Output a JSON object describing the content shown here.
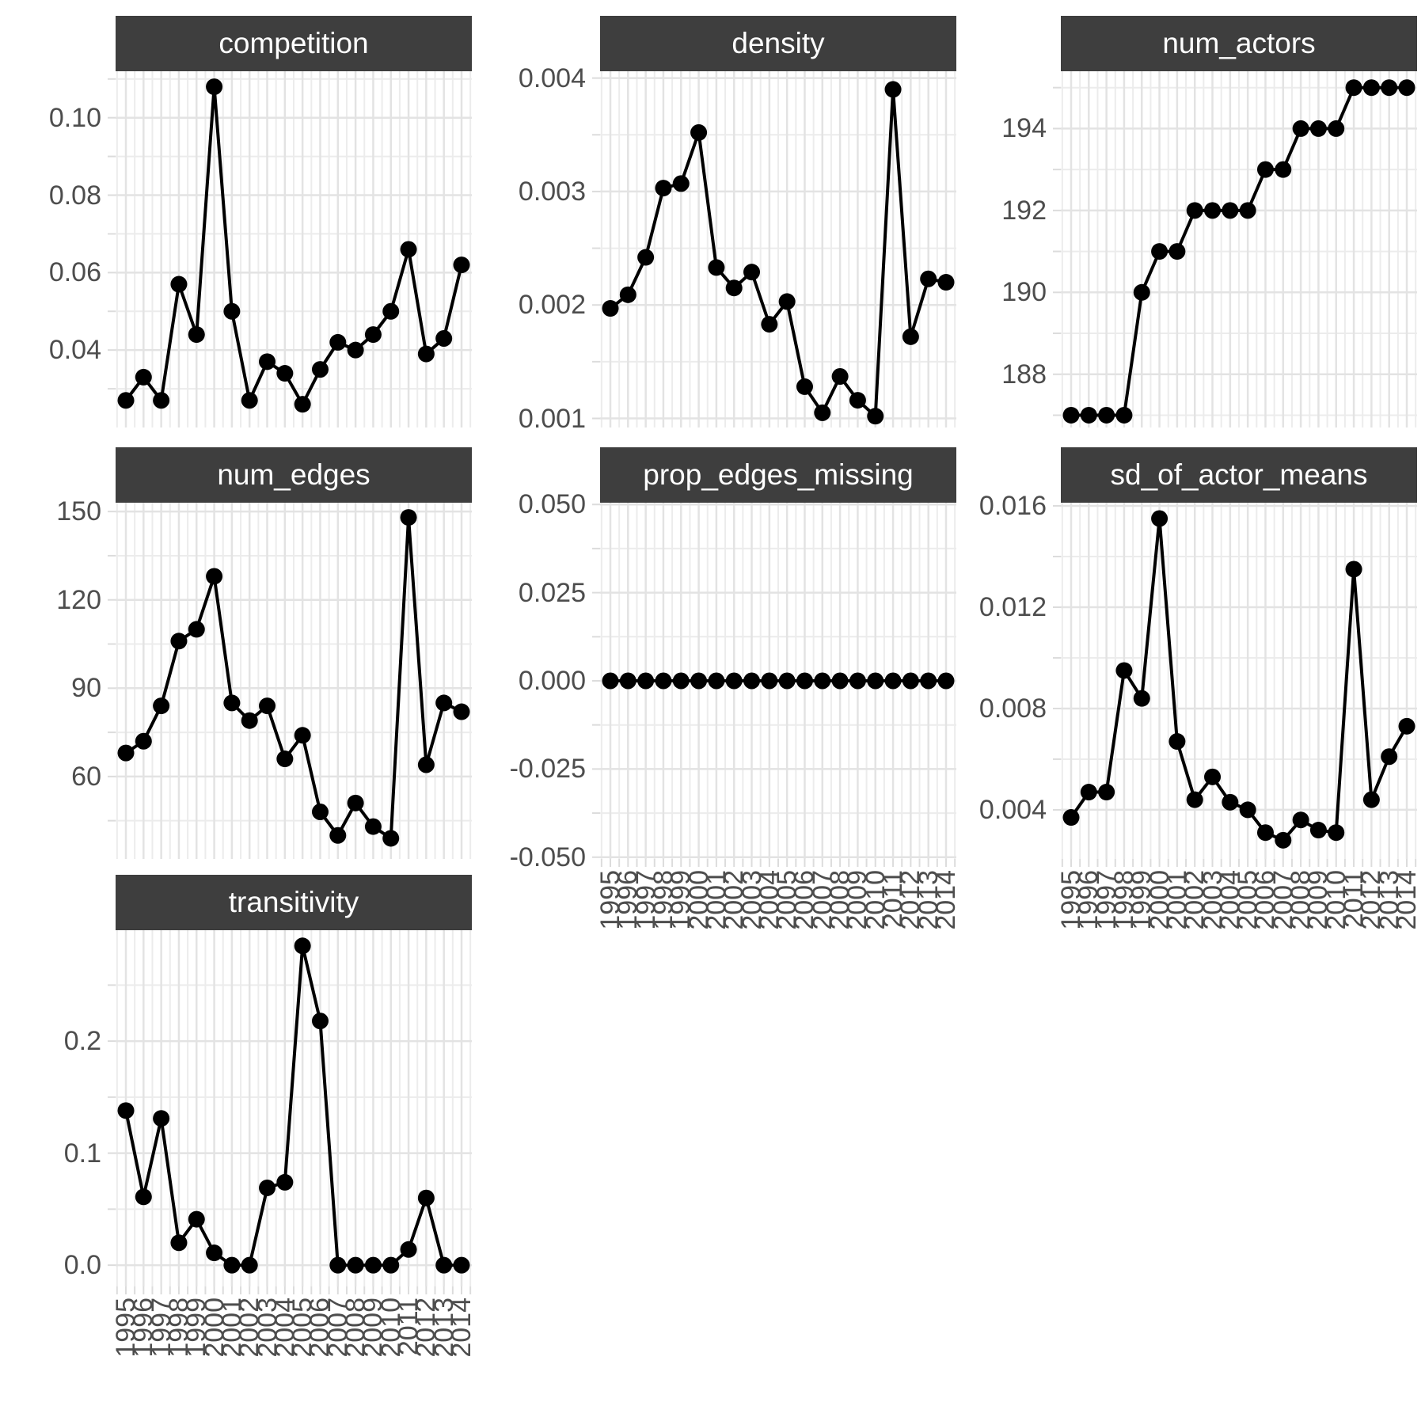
{
  "figure": {
    "background": "#ffffff"
  },
  "style": {
    "strip_bg": "#3E3E3E",
    "strip_text": "#FFFFFF",
    "axis_text_color": "#4D4D4D",
    "grid_major_color": "#E3E3E3",
    "grid_minor_color": "#ECECEC",
    "tick_color": "#DCDCDC",
    "line_color": "#000000",
    "point_color": "#000000"
  },
  "x_axis": {
    "years": [
      1995,
      1996,
      1997,
      1998,
      1999,
      2000,
      2001,
      2002,
      2003,
      2004,
      2005,
      2006,
      2007,
      2008,
      2009,
      2010,
      2011,
      2012,
      2013,
      2014
    ],
    "tick_labels": [
      "1995",
      "1996",
      "1997",
      "1998",
      "1999",
      "2000",
      "2001",
      "2002",
      "2003",
      "2004",
      "2005",
      "2006",
      "2007",
      "2008",
      "2009",
      "2010",
      "2011",
      "2012",
      "2013",
      "2014"
    ]
  },
  "chart_data": [
    {
      "type": "line",
      "title": "competition",
      "row": 0,
      "col": 0,
      "show_x_labels": false,
      "values": [
        0.027,
        0.033,
        0.027,
        0.057,
        0.044,
        0.108,
        0.05,
        0.027,
        0.037,
        0.034,
        0.026,
        0.035,
        0.042,
        0.04,
        0.044,
        0.05,
        0.066,
        0.039,
        0.043,
        0.062
      ],
      "y_ticks": {
        "labels": [
          "0.10",
          "0.08",
          "0.06",
          "0.04"
        ],
        "values": [
          0.1,
          0.08,
          0.06,
          0.04
        ]
      },
      "y_minor": [
        0.03,
        0.05,
        0.07,
        0.09,
        0.11
      ],
      "y_domain": [
        0.02,
        0.112
      ]
    },
    {
      "type": "line",
      "title": "density",
      "row": 0,
      "col": 1,
      "show_x_labels": false,
      "values": [
        0.00197,
        0.00209,
        0.00242,
        0.00303,
        0.00307,
        0.00352,
        0.00233,
        0.00215,
        0.00229,
        0.00183,
        0.00203,
        0.00128,
        0.00105,
        0.00137,
        0.00116,
        0.00102,
        0.0039,
        0.00172,
        0.00223,
        0.0022
      ],
      "y_ticks": {
        "labels": [
          "0.004",
          "0.003",
          "0.002",
          "0.001"
        ],
        "values": [
          0.004,
          0.003,
          0.002,
          0.001
        ]
      },
      "y_minor": [
        0.0015,
        0.0025,
        0.0035
      ],
      "y_domain": [
        0.00092,
        0.00406
      ]
    },
    {
      "type": "line",
      "title": "num_actors",
      "row": 0,
      "col": 2,
      "show_x_labels": false,
      "values": [
        187,
        187,
        187,
        187,
        190,
        191,
        191,
        192,
        192,
        192,
        192,
        193,
        193,
        194,
        194,
        194,
        195,
        195,
        195,
        195
      ],
      "y_ticks": {
        "labels": [
          "194",
          "192",
          "190",
          "188"
        ],
        "values": [
          194,
          192,
          190,
          188
        ]
      },
      "y_minor": [
        187,
        189,
        191,
        193,
        195
      ],
      "y_domain": [
        186.7,
        195.4
      ]
    },
    {
      "type": "line",
      "title": "num_edges",
      "row": 1,
      "col": 0,
      "show_x_labels": false,
      "values": [
        68,
        72,
        84,
        106,
        110,
        128,
        85,
        79,
        84,
        66,
        74,
        48,
        40,
        51,
        43,
        39,
        148,
        64,
        85,
        82
      ],
      "y_ticks": {
        "labels": [
          "150",
          "120",
          "90",
          "60"
        ],
        "values": [
          150,
          120,
          90,
          60
        ]
      },
      "y_minor": [
        45,
        75,
        105,
        135
      ],
      "y_domain": [
        32,
        153
      ]
    },
    {
      "type": "line",
      "title": "prop_edges_missing",
      "row": 1,
      "col": 1,
      "show_x_labels": true,
      "values": [
        0,
        0,
        0,
        0,
        0,
        0,
        0,
        0,
        0,
        0,
        0,
        0,
        0,
        0,
        0,
        0,
        0,
        0,
        0,
        0
      ],
      "y_ticks": {
        "labels": [
          "0.050",
          "0.025",
          "0.000",
          "-0.025",
          "-0.050"
        ],
        "values": [
          0.05,
          0.025,
          0.0,
          -0.025,
          -0.05
        ]
      },
      "y_minor": [
        0.0375,
        0.0125,
        -0.0125,
        -0.0375
      ],
      "y_domain": [
        -0.0505,
        0.0505
      ]
    },
    {
      "type": "line",
      "title": "sd_of_actor_means",
      "row": 1,
      "col": 2,
      "show_x_labels": true,
      "values": [
        0.0037,
        0.0047,
        0.0047,
        0.0095,
        0.0084,
        0.0155,
        0.0067,
        0.0044,
        0.0053,
        0.0043,
        0.004,
        0.0031,
        0.0028,
        0.0036,
        0.0032,
        0.0031,
        0.0135,
        0.0044,
        0.0061,
        0.0073
      ],
      "y_ticks": {
        "labels": [
          "0.016",
          "0.012",
          "0.008",
          "0.004"
        ],
        "values": [
          0.016,
          0.012,
          0.008,
          0.004
        ]
      },
      "y_minor": [
        0.006,
        0.01,
        0.014
      ],
      "y_domain": [
        0.00206,
        0.016125
      ]
    },
    {
      "type": "line",
      "title": "transitivity",
      "row": 2,
      "col": 0,
      "show_x_labels": true,
      "values": [
        0.138,
        0.061,
        0.131,
        0.02,
        0.041,
        0.011,
        0,
        0,
        0.069,
        0.074,
        0.285,
        0.218,
        0,
        0,
        0,
        0,
        0.014,
        0.06,
        0,
        0
      ],
      "y_ticks": {
        "labels": [
          "0.2",
          "0.1",
          "0.0"
        ],
        "values": [
          0.2,
          0.1,
          0.0
        ]
      },
      "y_minor": [
        0.05,
        0.15,
        0.25
      ],
      "y_domain": [
        -0.019,
        0.299
      ]
    }
  ]
}
